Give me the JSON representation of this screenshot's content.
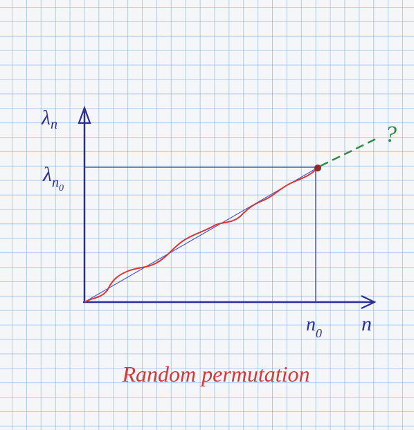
{
  "axes": {
    "y_label": {
      "base": "λ",
      "sub": "n"
    },
    "x_label": "n"
  },
  "marker": {
    "y_label": {
      "base": "λ",
      "sub": "n",
      "subsub": "0"
    },
    "x_label": {
      "base": "n",
      "sub": "0"
    }
  },
  "question": "?",
  "caption": "Random permutation"
}
